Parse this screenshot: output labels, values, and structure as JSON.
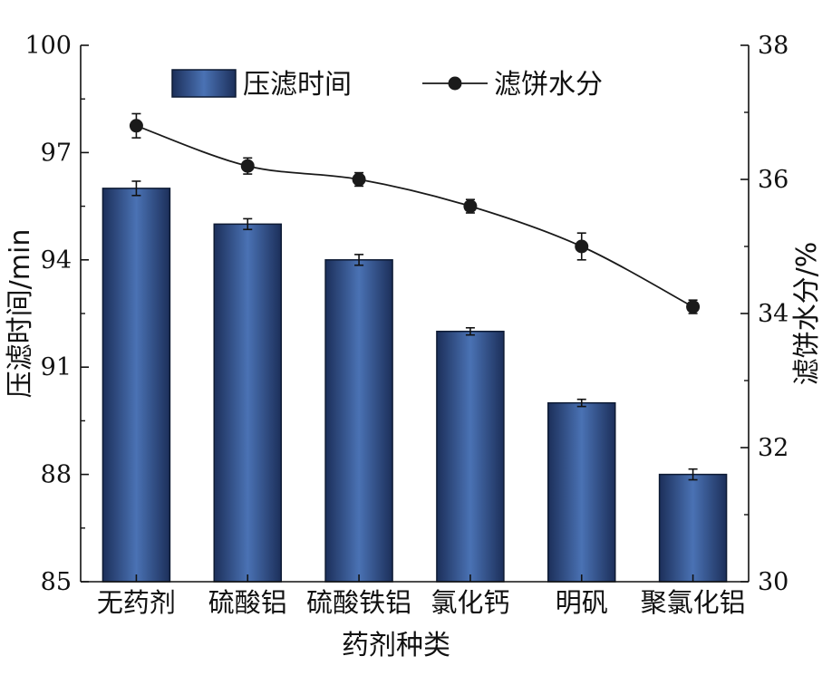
{
  "chart_data": {
    "type": "bar",
    "categories": [
      "无药剂",
      "硫酸铝",
      "硫酸铁铝",
      "氯化钙",
      "明矾",
      "聚氯化铝"
    ],
    "xlabel": "药剂种类",
    "ylabel": "压滤时间/min",
    "y2label": "滤饼水分/%",
    "ylim": [
      85,
      100
    ],
    "yticks": [
      85,
      88,
      91,
      94,
      97,
      100
    ],
    "y2lim": [
      30,
      38
    ],
    "y2ticks": [
      30,
      32,
      34,
      36,
      38
    ],
    "series": [
      {
        "name": "压滤时间",
        "kind": "bar",
        "axis": "left",
        "values": [
          96.0,
          95.0,
          94.0,
          92.0,
          90.0,
          88.0
        ],
        "errors": [
          0.2,
          0.15,
          0.15,
          0.1,
          0.1,
          0.15
        ],
        "color": "#3a5c9a"
      },
      {
        "name": "滤饼水分",
        "kind": "line",
        "axis": "right",
        "values": [
          36.8,
          36.2,
          36.0,
          35.6,
          35.0,
          34.1
        ],
        "errors": [
          0.18,
          0.12,
          0.1,
          0.1,
          0.2,
          0.1
        ],
        "color": "#1a1a1a"
      }
    ],
    "grid": false,
    "legend_position": "top"
  }
}
